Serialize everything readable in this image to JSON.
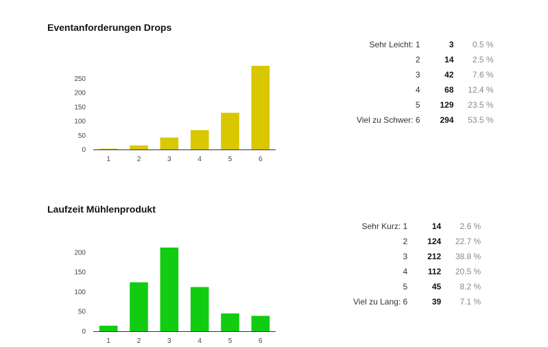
{
  "sections": [
    {
      "title": "Eventanforderungen Drops",
      "bar_color": "#d9c700",
      "rows": [
        {
          "label": "Sehr Leicht: 1",
          "count": "3",
          "pct": "0.5 %"
        },
        {
          "label": "2",
          "count": "14",
          "pct": "2.5 %"
        },
        {
          "label": "3",
          "count": "42",
          "pct": "7.6 %"
        },
        {
          "label": "4",
          "count": "68",
          "pct": "12.4 %"
        },
        {
          "label": "5",
          "count": "129",
          "pct": "23.5 %"
        },
        {
          "label": "Viel zu Schwer: 6",
          "count": "294",
          "pct": "53.5 %"
        }
      ]
    },
    {
      "title": "Laufzeit Mühlenprodukt",
      "bar_color": "#11cc11",
      "rows": [
        {
          "label": "Sehr Kurz: 1",
          "count": "14",
          "pct": "2.6 %"
        },
        {
          "label": "2",
          "count": "124",
          "pct": "22.7 %"
        },
        {
          "label": "3",
          "count": "212",
          "pct": "38.8 %"
        },
        {
          "label": "4",
          "count": "112",
          "pct": "20.5 %"
        },
        {
          "label": "5",
          "count": "45",
          "pct": "8.2 %"
        },
        {
          "label": "Viel zu Lang: 6",
          "count": "39",
          "pct": "7.1 %"
        }
      ]
    }
  ],
  "chart_data": [
    {
      "type": "bar",
      "title": "Eventanforderungen Drops",
      "categories": [
        "1",
        "2",
        "3",
        "4",
        "5",
        "6"
      ],
      "values": [
        3,
        14,
        42,
        68,
        129,
        294
      ],
      "yticks": [
        0,
        50,
        100,
        150,
        200,
        250
      ],
      "ylim": [
        0,
        294
      ],
      "color": "#d9c700"
    },
    {
      "type": "bar",
      "title": "Laufzeit Mühlenprodukt",
      "categories": [
        "1",
        "2",
        "3",
        "4",
        "5",
        "6"
      ],
      "values": [
        14,
        124,
        212,
        112,
        45,
        39
      ],
      "yticks": [
        0,
        50,
        100,
        150,
        200
      ],
      "ylim": [
        0,
        212
      ],
      "color": "#11cc11"
    }
  ]
}
